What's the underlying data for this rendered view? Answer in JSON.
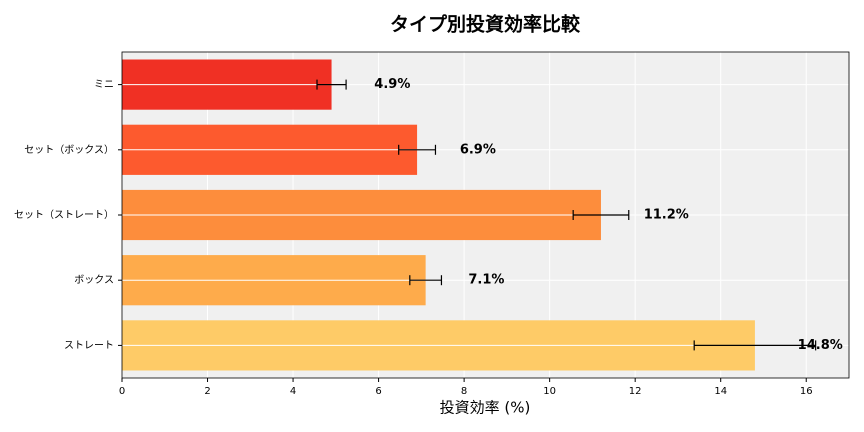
{
  "chart_data": {
    "type": "barh",
    "title": "タイプ別投資効率比較",
    "x_label": "投資効率 (%)",
    "categories": [
      "ミニ",
      "セット（ボックス）",
      "セット（ストレート）",
      "ボックス",
      "ストレート"
    ],
    "values": [
      4.9,
      6.9,
      11.2,
      7.1,
      14.8
    ],
    "value_labels": [
      "4.9%",
      "6.9%",
      "11.2%",
      "7.1%",
      "14.8%"
    ],
    "errors": [
      0.34,
      0.43,
      0.65,
      0.37,
      1.42
    ],
    "colors": [
      "#f03024",
      "#fd5a2e",
      "#fd8d3c",
      "#feab4b",
      "#fecb67"
    ],
    "error_color": "#000000",
    "xlim": [
      0,
      17.0
    ],
    "xticks": [
      0,
      2,
      4,
      6,
      8,
      10,
      12,
      14,
      16
    ],
    "grid": true
  }
}
